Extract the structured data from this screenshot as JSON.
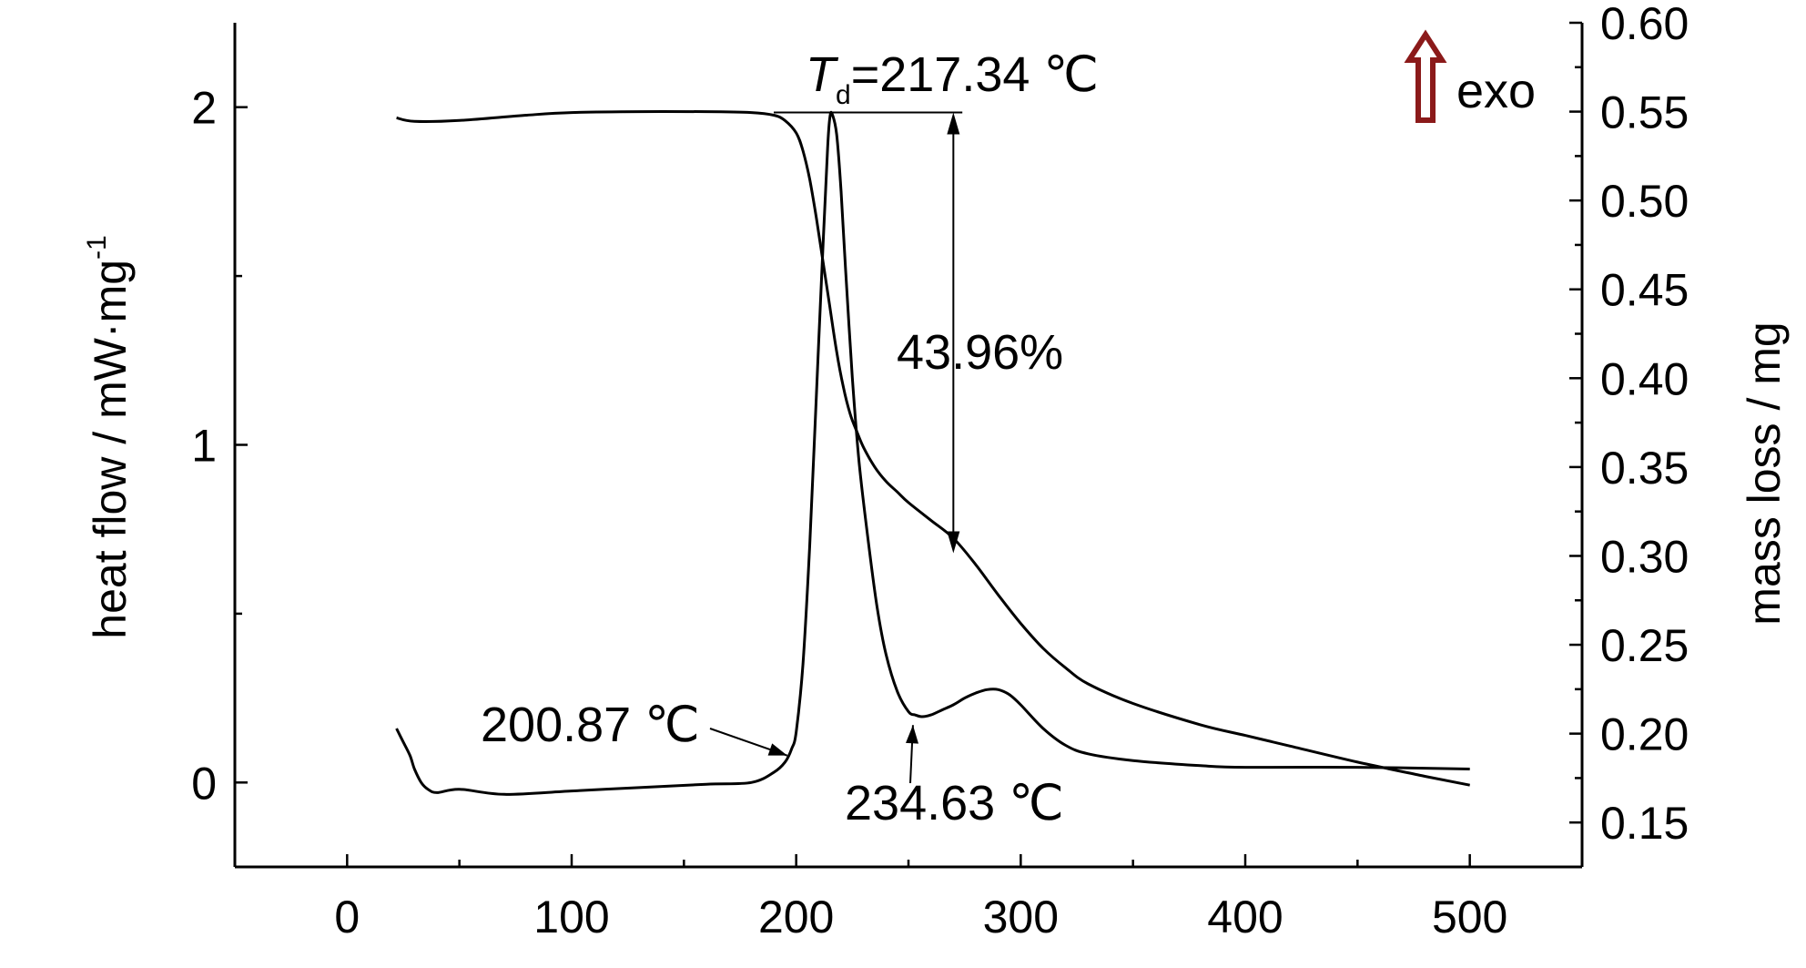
{
  "chart_data": {
    "type": "line",
    "xlabel": "",
    "x_ticks": [
      0,
      100,
      200,
      300,
      400,
      500
    ],
    "xlim": [
      -50,
      550
    ],
    "y_left": {
      "label": "heat flow / mW·mg",
      "label_superscript": "-1",
      "ticks": [
        0,
        1,
        2
      ],
      "minor_ticks": [
        0.5,
        1.5
      ],
      "lim": [
        -0.25,
        2.25
      ]
    },
    "y_right": {
      "label": "mass loss / mg",
      "ticks": [
        "0.15",
        "0.20",
        "0.25",
        "0.30",
        "0.35",
        "0.40",
        "0.45",
        "0.50",
        "0.55",
        "0.60"
      ],
      "lim": [
        0.125,
        0.6
      ]
    },
    "legend_text": "exo",
    "exo_arrow_color": "#8b1a1a",
    "series": [
      {
        "axis": "right",
        "x": [
          22,
          30,
          50,
          80,
          100,
          130,
          160,
          180,
          190,
          195,
          200,
          203,
          206,
          209,
          212,
          215,
          218,
          221,
          224,
          227,
          230,
          235,
          240,
          245,
          250,
          260,
          270,
          280,
          290,
          300,
          310,
          320,
          330,
          350,
          380,
          400,
          420,
          450,
          480,
          500
        ],
        "y": [
          0.5465,
          0.5445,
          0.545,
          0.548,
          0.5495,
          0.55,
          0.55,
          0.5495,
          0.548,
          0.545,
          0.538,
          0.528,
          0.512,
          0.49,
          0.465,
          0.44,
          0.415,
          0.395,
          0.38,
          0.37,
          0.361,
          0.35,
          0.342,
          0.336,
          0.33,
          0.32,
          0.31,
          0.295,
          0.278,
          0.262,
          0.248,
          0.237,
          0.228,
          0.217,
          0.205,
          0.199,
          0.193,
          0.184,
          0.176,
          0.171
        ]
      },
      {
        "axis": "left",
        "x": [
          22,
          25,
          28,
          30,
          33,
          36,
          40,
          50,
          70,
          100,
          130,
          160,
          180,
          190,
          195,
          198,
          200,
          203,
          206,
          209,
          212,
          214,
          215,
          216,
          218,
          220,
          222,
          225,
          228,
          232,
          236,
          240,
          245,
          250,
          253,
          256,
          260,
          265,
          270,
          275,
          280,
          285,
          290,
          295,
          300,
          310,
          320,
          330,
          350,
          380,
          400,
          450,
          500
        ],
        "y": [
          0.16,
          0.12,
          0.08,
          0.04,
          0.0,
          -0.02,
          -0.03,
          -0.02,
          -0.035,
          -0.025,
          -0.015,
          -0.005,
          0.0,
          0.03,
          0.06,
          0.1,
          0.15,
          0.35,
          0.7,
          1.15,
          1.6,
          1.88,
          1.97,
          1.98,
          1.92,
          1.75,
          1.52,
          1.2,
          0.95,
          0.72,
          0.52,
          0.38,
          0.27,
          0.21,
          0.2,
          0.195,
          0.2,
          0.215,
          0.23,
          0.25,
          0.265,
          0.275,
          0.275,
          0.26,
          0.23,
          0.16,
          0.11,
          0.085,
          0.065,
          0.05,
          0.045,
          0.045,
          0.04
        ]
      }
    ],
    "annotations": {
      "td_symbol": "T",
      "td_subscript": "d",
      "td_value": "=217.34 ℃",
      "mass_loss_text": "43.96%",
      "onset_text": "200.87 ℃",
      "valley_text": "234.63 ℃"
    }
  }
}
